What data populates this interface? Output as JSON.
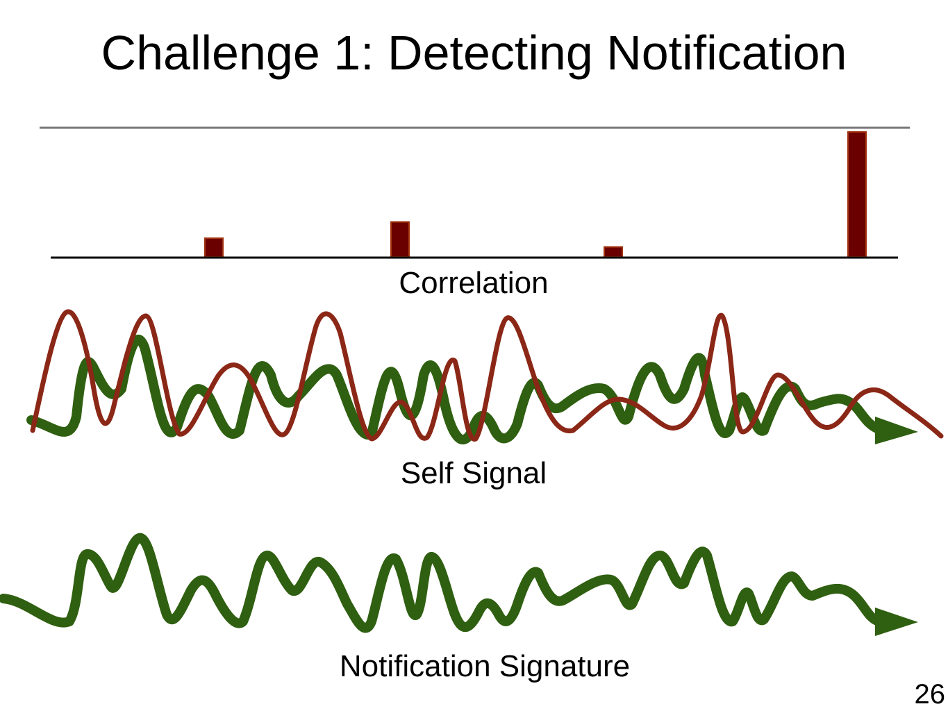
{
  "slide": {
    "title": "Challenge 1: Detecting Notification",
    "page_number": "26"
  },
  "labels": {
    "correlation": "Correlation",
    "self_signal": "Self Signal",
    "notification_signature": "Notification Signature"
  },
  "correlation_bars": {
    "values": [
      0.15,
      0.28,
      0.08,
      1.0
    ],
    "fill": "#6b0000",
    "stroke": "#a3340f"
  },
  "colors": {
    "green_signal": "#2f5f10",
    "red_signal": "#8b2716",
    "threshold_line": "#777777",
    "baseline": "#000000"
  }
}
